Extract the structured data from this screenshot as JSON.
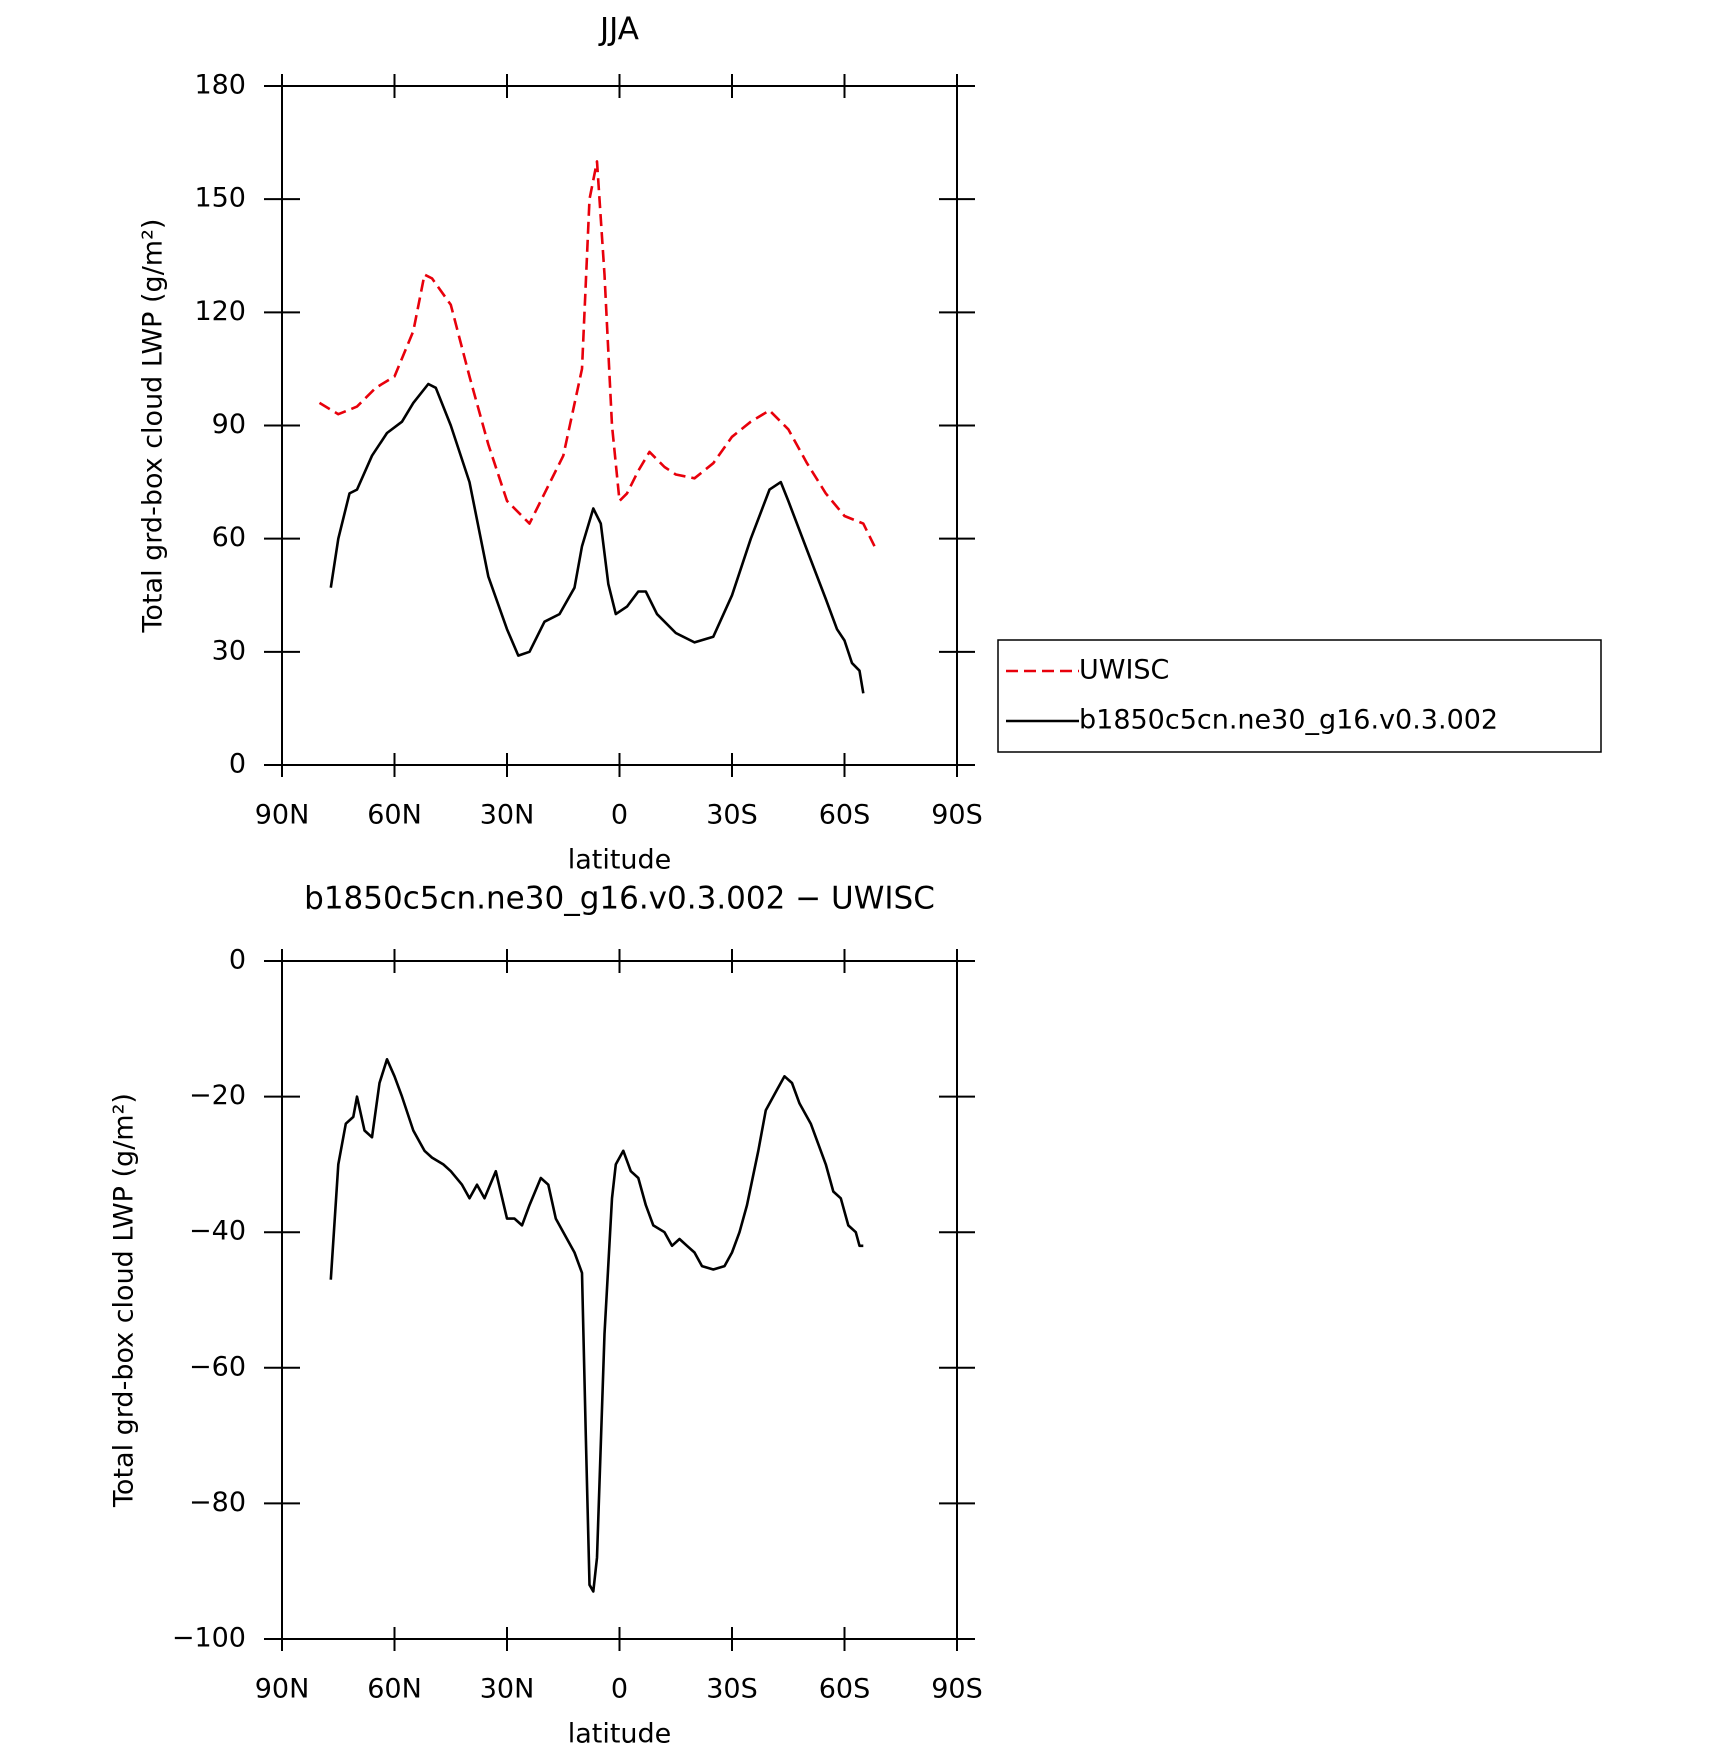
{
  "charts": [
    {
      "chart_data": {
        "type": "line",
        "title": "JJA",
        "x_label": "latitude",
        "y_label": "Total grd-box cloud LWP (g/m²)",
        "xlim": [
          90,
          -90
        ],
        "xticks": [
          {
            "value": 90,
            "label": "90N"
          },
          {
            "value": 60,
            "label": "60N"
          },
          {
            "value": 30,
            "label": "30N"
          },
          0,
          {
            "value": -30,
            "label": "30S"
          },
          {
            "value": -60,
            "label": "60S"
          },
          {
            "value": -90,
            "label": "90S"
          }
        ],
        "ylim": [
          0,
          180
        ],
        "yticks": [
          0,
          30,
          60,
          90,
          120,
          150,
          180
        ],
        "series": [
          {
            "name": "UWISC",
            "color": "#e8000b",
            "dash": true,
            "x": [
              80,
              75,
              70,
              65,
              60,
              55,
              52,
              50,
              45,
              40,
              35,
              30,
              24,
              20,
              15,
              10,
              8,
              6,
              4,
              2,
              0,
              -2,
              -5,
              -8,
              -12,
              -15,
              -20,
              -25,
              -30,
              -35,
              -40,
              -45,
              -50,
              -55,
              -60,
              -65,
              -68
            ],
            "values": [
              96,
              93,
              95,
              100,
              103,
              115,
              130,
              129,
              122,
              103,
              85,
              70,
              64,
              72,
              82,
              105,
              150,
              160,
              130,
              90,
              70,
              72,
              78,
              83,
              79,
              77,
              76,
              80,
              87,
              91,
              94,
              89,
              80,
              72,
              66,
              64,
              58
            ]
          },
          {
            "name": "b1850c5cn.ne30_g16.v0.3.002",
            "color": "#000000",
            "dash": false,
            "x": [
              77,
              75,
              72,
              70,
              66,
              62,
              58,
              55,
              51,
              49,
              45,
              40,
              35,
              30,
              27,
              24,
              20,
              16,
              12,
              10,
              7,
              5,
              3,
              1,
              -2,
              -5,
              -7,
              -10,
              -15,
              -20,
              -25,
              -30,
              -35,
              -40,
              -43,
              -45,
              -50,
              -55,
              -58,
              -60,
              -62,
              -64,
              -65
            ],
            "values": [
              47,
              60,
              72,
              73,
              82,
              88,
              91,
              96,
              101,
              100,
              90,
              75,
              50,
              36,
              29,
              30,
              38,
              40,
              47,
              58,
              68,
              64,
              48,
              40,
              42,
              46,
              46,
              40,
              35,
              32.5,
              34,
              45,
              60,
              73,
              75,
              70,
              57,
              44,
              36,
              33,
              27,
              25,
              19
            ]
          }
        ]
      }
    },
    {
      "chart_data": {
        "type": "line",
        "title": "b1850c5cn.ne30_g16.v0.3.002 − UWISC",
        "x_label": "latitude",
        "y_label": "Total grd-box cloud LWP (g/m²)",
        "xlim": [
          90,
          -90
        ],
        "xticks": [
          {
            "value": 90,
            "label": "90N"
          },
          {
            "value": 60,
            "label": "60N"
          },
          {
            "value": 30,
            "label": "30N"
          },
          0,
          {
            "value": -30,
            "label": "30S"
          },
          {
            "value": -60,
            "label": "60S"
          },
          {
            "value": -90,
            "label": "90S"
          }
        ],
        "ylim": [
          -100,
          0
        ],
        "yticks": [
          {
            "value": -100,
            "label": "−100"
          },
          {
            "value": -80,
            "label": "−80"
          },
          {
            "value": -60,
            "label": "−60"
          },
          {
            "value": -40,
            "label": "−40"
          },
          {
            "value": -20,
            "label": "−20"
          },
          0
        ],
        "series": [
          {
            "color": "#000000",
            "x": [
              77,
              75,
              73,
              71,
              70,
              68,
              66,
              64,
              62,
              60,
              58,
              55,
              52,
              50,
              47,
              45,
              42,
              40,
              38,
              36,
              33,
              30,
              28,
              26,
              24,
              21,
              19,
              17,
              15,
              12,
              10,
              9,
              8,
              7,
              6,
              4,
              2,
              1,
              -1,
              -3,
              -5,
              -7,
              -9,
              -12,
              -14,
              -16,
              -18,
              -20,
              -22,
              -25,
              -28,
              -30,
              -32,
              -34,
              -37,
              -39,
              -42,
              -44,
              -46,
              -48,
              -51,
              -53,
              -55,
              -57,
              -59,
              -61,
              -63,
              -64,
              -65
            ],
            "values": [
              -47,
              -30,
              -24,
              -23,
              -20,
              -25,
              -26,
              -18,
              -14.5,
              -17,
              -20,
              -25,
              -28,
              -29,
              -30,
              -31,
              -33,
              -35,
              -33,
              -35,
              -31,
              -38,
              -38,
              -39,
              -36,
              -32,
              -33,
              -38,
              -40,
              -43,
              -46,
              -70,
              -92,
              -93,
              -88,
              -55,
              -35,
              -30,
              -28,
              -31,
              -32,
              -36,
              -39,
              -40,
              -42,
              -41,
              -42,
              -43,
              -45,
              -45.5,
              -45,
              -43,
              -40,
              -36,
              -28,
              -22,
              -19,
              -17,
              -18,
              -21,
              -24,
              -27,
              -30,
              -34,
              -35,
              -39,
              -40,
              -42,
              -42
            ]
          }
        ]
      }
    }
  ]
}
